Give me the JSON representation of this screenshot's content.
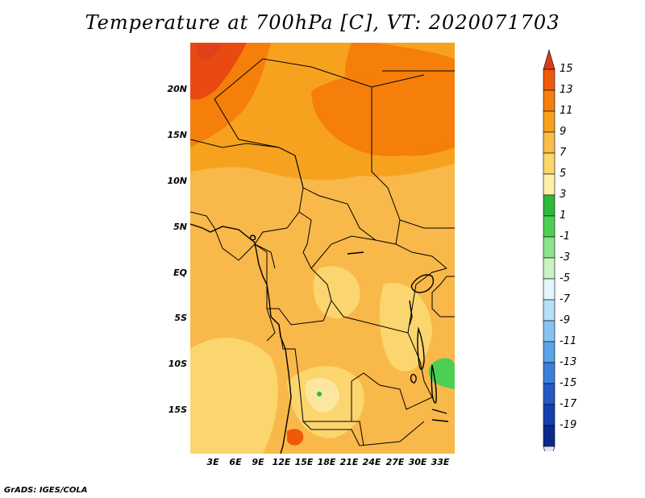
{
  "title": "Temperature at 700hPa [C], VT: 2020071703",
  "footer": "GrADS: IGES/COLA",
  "map": {
    "variable": "Temperature at 700hPa",
    "units": "C",
    "valid_time": "2020071703",
    "lat_labels": [
      "20N",
      "15N",
      "10N",
      "5N",
      "EQ",
      "5S",
      "10S",
      "15S"
    ],
    "lon_labels": [
      "3E",
      "6E",
      "9E",
      "12E",
      "15E",
      "18E",
      "21E",
      "24E",
      "27E",
      "30E",
      "33E"
    ]
  },
  "colorbar": {
    "labels": [
      "15",
      "13",
      "11",
      "9",
      "7",
      "5",
      "3",
      "1",
      "-1",
      "-3",
      "-5",
      "-7",
      "-9",
      "-11",
      "-13",
      "-15",
      "-17",
      "-19"
    ],
    "colors": [
      "#e0401a",
      "#ee5a0a",
      "#f57f0a",
      "#f7a21e",
      "#f9be4a",
      "#fbd56e",
      "#fdf0a8",
      "#2fb83c",
      "#4dcf55",
      "#8de38b",
      "#c8f3c4",
      "#e4f6fb",
      "#b6e0f7",
      "#85c4f1",
      "#5aa3e6",
      "#3b7fd9",
      "#2559c4",
      "#163fae",
      "#0c2a8a",
      "#081a66"
    ],
    "top_arrow_color": "#dc3a1a",
    "bottom_arrow_color": "#e2e2f7"
  }
}
